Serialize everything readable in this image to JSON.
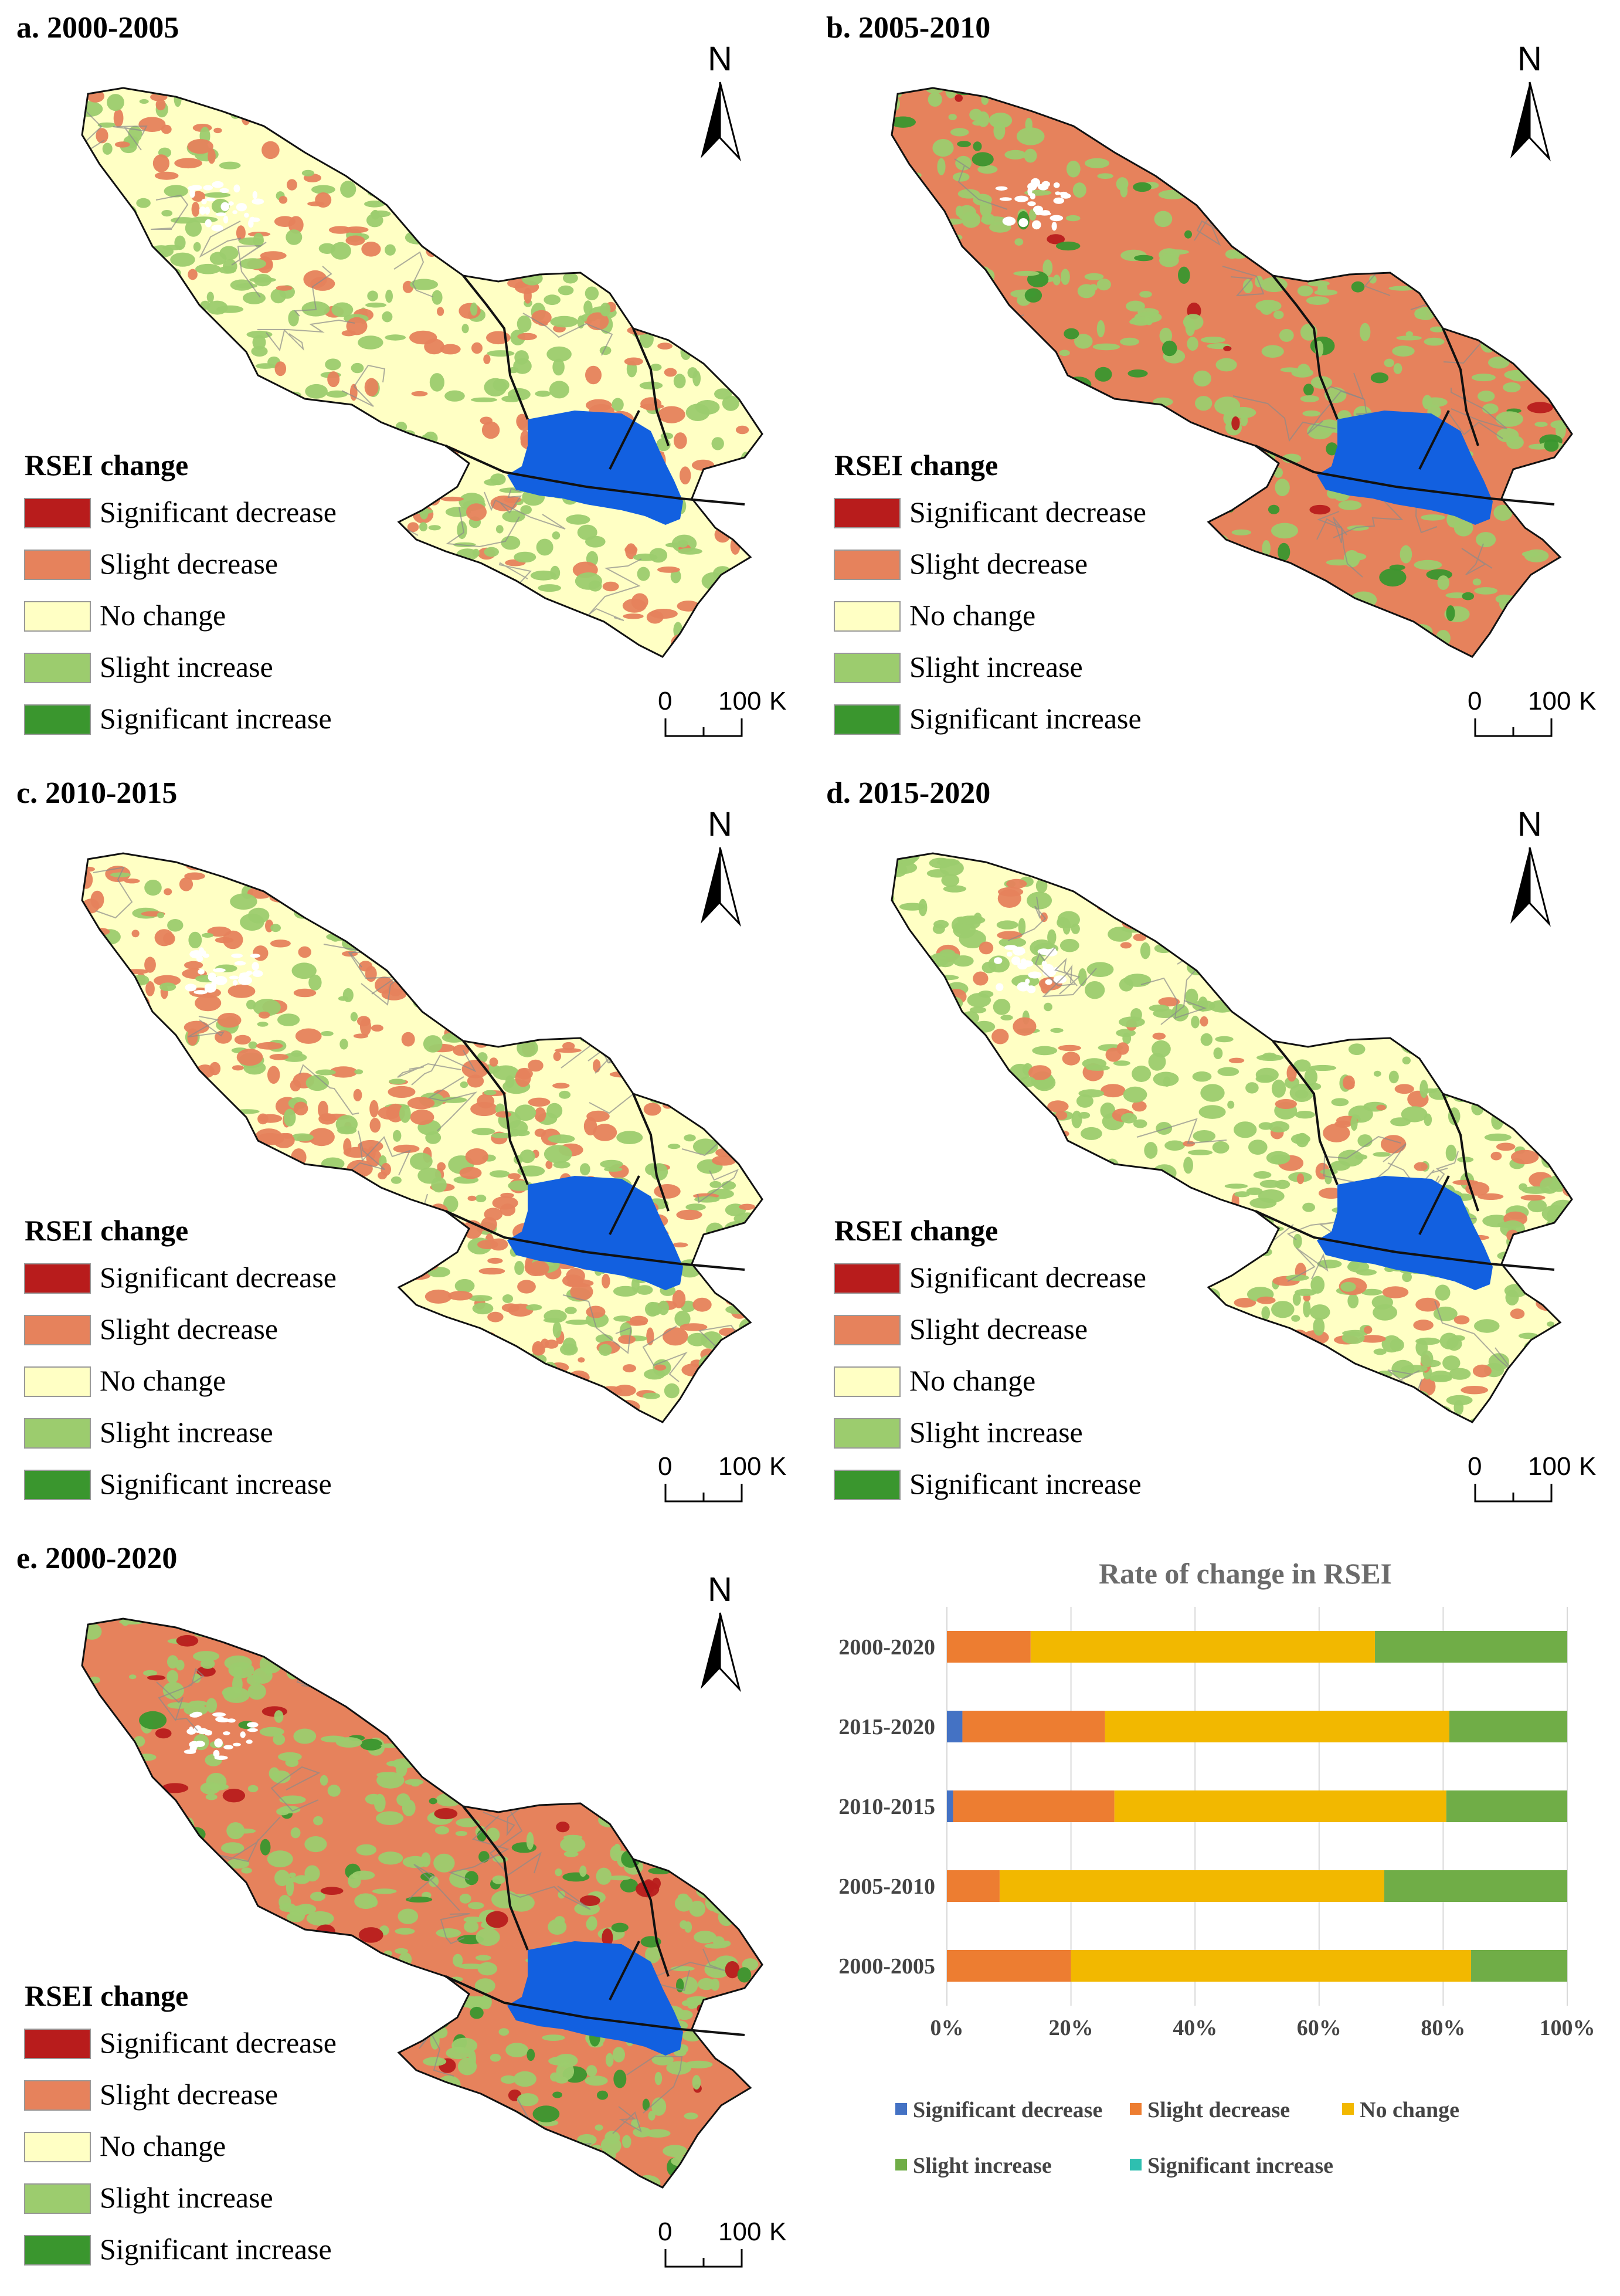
{
  "legend": {
    "title": "RSEI change",
    "items": [
      {
        "label": "Significant decrease",
        "color": "#b81c1c"
      },
      {
        "label": "Slight decrease",
        "color": "#e6825c"
      },
      {
        "label": "No change",
        "color": "#ffffc4"
      },
      {
        "label": "Slight increase",
        "color": "#9ccc6e"
      },
      {
        "label": "Significant increase",
        "color": "#3a962e"
      }
    ]
  },
  "north_letter": "N",
  "scale_bar": {
    "start": "0",
    "end": "100",
    "unit": "K"
  },
  "lake_color": "#1260e0",
  "panels": [
    {
      "title": "a. 2000-2005",
      "base_color": "#ffffc4",
      "mix": {
        "sig_dec": 0.0,
        "slight_dec": 0.22,
        "slight_inc": 0.38,
        "sig_inc": 0.0
      }
    },
    {
      "title": "b. 2005-2010",
      "base_color": "#e6825c",
      "mix": {
        "sig_dec": 0.03,
        "slight_dec": 0.0,
        "slight_inc": 0.35,
        "sig_inc": 0.05
      }
    },
    {
      "title": "c. 2010-2015",
      "base_color": "#ffffc4",
      "mix": {
        "sig_dec": 0.0,
        "slight_dec": 0.42,
        "slight_inc": 0.3,
        "sig_inc": 0.0
      }
    },
    {
      "title": "d. 2015-2020",
      "base_color": "#ffffc4",
      "mix": {
        "sig_dec": 0.0,
        "slight_dec": 0.18,
        "slight_inc": 0.5,
        "sig_inc": 0.0
      }
    },
    {
      "title": "e. 2000-2020",
      "base_color": "#e6825c",
      "mix": {
        "sig_dec": 0.05,
        "slight_dec": 0.0,
        "slight_inc": 0.45,
        "sig_inc": 0.08
      }
    }
  ],
  "chart_data": {
    "type": "bar",
    "orientation": "horizontal-stacked",
    "title": "Rate of change in RSEI",
    "categories": [
      "2000-2020",
      "2015-2020",
      "2010-2015",
      "2005-2010",
      "2000-2005"
    ],
    "series": [
      {
        "name": "Significant decrease",
        "color": "#4472c4",
        "values": [
          0,
          2.5,
          1,
          0,
          0
        ]
      },
      {
        "name": "Slight decrease",
        "color": "#ed7d31",
        "values": [
          13.5,
          23,
          26,
          8.5,
          20
        ]
      },
      {
        "name": "No change",
        "color": "#f2b800",
        "values": [
          55.5,
          55.5,
          53.5,
          62,
          64.5
        ]
      },
      {
        "name": "Slight increase",
        "color": "#70ad47",
        "values": [
          31,
          19,
          19.5,
          29.5,
          15.5
        ]
      },
      {
        "name": "Significant increase",
        "color": "#2ebfb0",
        "values": [
          0,
          0,
          0,
          0,
          0
        ]
      }
    ],
    "x_ticks": [
      "0%",
      "20%",
      "40%",
      "60%",
      "80%",
      "100%"
    ],
    "xlim": [
      0,
      100
    ],
    "grid": true,
    "legend_position": "bottom"
  }
}
